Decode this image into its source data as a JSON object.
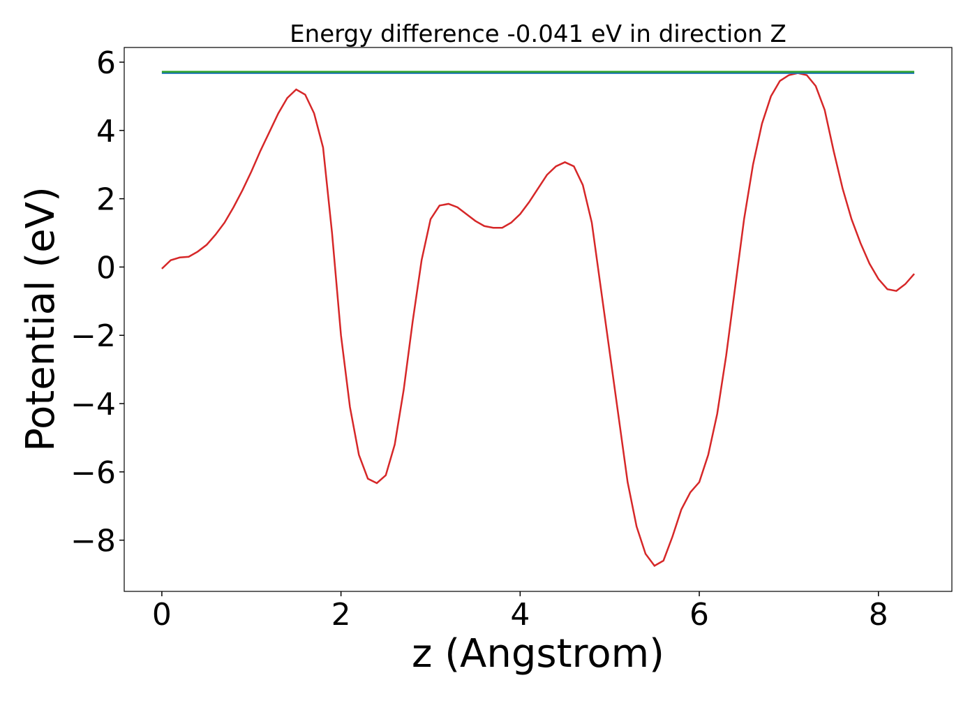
{
  "chart_data": {
    "type": "line",
    "title": "Energy difference -0.041 eV in direction Z",
    "x_label": "z (Angstrom)",
    "y_label": "Potential (eV)",
    "xlim": [
      -0.42,
      8.82
    ],
    "ylim": [
      -9.5,
      6.43
    ],
    "xticks": [
      0,
      2,
      4,
      6,
      8
    ],
    "yticks": [
      {
        "value": -8,
        "label": "−8"
      },
      {
        "value": -6,
        "label": "−6"
      },
      {
        "value": -4,
        "label": "−4"
      },
      {
        "value": -2,
        "label": "−2"
      },
      0,
      2,
      4,
      6
    ],
    "series": [
      {
        "color": "#d62728",
        "x": [
          0,
          0.1,
          0.2,
          0.3,
          0.4,
          0.5,
          0.6,
          0.7,
          0.8,
          0.9,
          1.0,
          1.1,
          1.2,
          1.3,
          1.4,
          1.5,
          1.6,
          1.7,
          1.8,
          1.9,
          2.0,
          2.1,
          2.2,
          2.3,
          2.4,
          2.5,
          2.6,
          2.7,
          2.8,
          2.9,
          3.0,
          3.1,
          3.2,
          3.3,
          3.4,
          3.5,
          3.6,
          3.7,
          3.8,
          3.9,
          4.0,
          4.1,
          4.2,
          4.3,
          4.4,
          4.5,
          4.6,
          4.7,
          4.8,
          4.9,
          5.0,
          5.1,
          5.2,
          5.3,
          5.4,
          5.5,
          5.6,
          5.7,
          5.8,
          5.9,
          6.0,
          6.1,
          6.2,
          6.3,
          6.4,
          6.5,
          6.6,
          6.7,
          6.8,
          6.9,
          7.0,
          7.1,
          7.2,
          7.3,
          7.4,
          7.5,
          7.6,
          7.7,
          7.8,
          7.9,
          8.0,
          8.1,
          8.2,
          8.3,
          8.4
        ],
        "values": [
          -0.05,
          0.2,
          0.28,
          0.3,
          0.45,
          0.65,
          0.95,
          1.3,
          1.75,
          2.25,
          2.8,
          3.4,
          3.95,
          4.5,
          4.95,
          5.2,
          5.05,
          4.5,
          3.5,
          1.0,
          -2.0,
          -4.1,
          -5.5,
          -6.2,
          -6.33,
          -6.1,
          -5.2,
          -3.6,
          -1.6,
          0.2,
          1.4,
          1.8,
          1.85,
          1.75,
          1.55,
          1.35,
          1.2,
          1.15,
          1.15,
          1.3,
          1.55,
          1.9,
          2.3,
          2.7,
          2.95,
          3.07,
          2.95,
          2.4,
          1.3,
          -0.6,
          -2.5,
          -4.4,
          -6.3,
          -7.6,
          -8.4,
          -8.75,
          -8.6,
          -7.9,
          -7.1,
          -6.6,
          -6.3,
          -5.5,
          -4.3,
          -2.6,
          -0.6,
          1.4,
          3.0,
          4.2,
          5.0,
          5.45,
          5.62,
          5.68,
          5.62,
          5.3,
          4.6,
          3.4,
          2.3,
          1.4,
          0.7,
          0.1,
          -0.35,
          -0.65,
          -0.7,
          -0.5,
          -0.2
        ]
      },
      {
        "color": "#1f77b4",
        "x": [
          0,
          8.4
        ],
        "values": [
          5.68,
          5.68
        ]
      },
      {
        "color": "#2ca02c",
        "x": [
          0,
          8.4
        ],
        "values": [
          5.72,
          5.72
        ]
      }
    ]
  }
}
